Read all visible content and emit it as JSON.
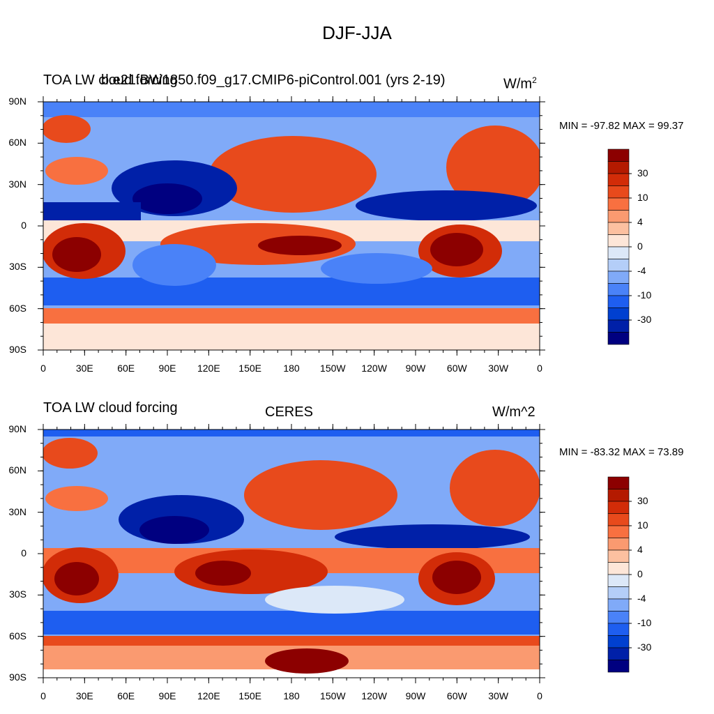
{
  "title": "DJF-JJA",
  "colors": {
    "levels": [
      "#000080",
      "#0020a8",
      "#0040d0",
      "#1e5ef0",
      "#4a82f8",
      "#80aaf8",
      "#b4cef8",
      "#dce8f8",
      "#fde6d8",
      "#fcc0a0",
      "#fa9a70",
      "#f87040",
      "#e84a1c",
      "#d22c08",
      "#b41a00",
      "#8c0000"
    ],
    "land": "#000000"
  },
  "panels": [
    {
      "left_title": "TOA LW cloud forcing",
      "center_title": "b.e21.BW1850.f09_g17.CMIP6-piControl.001 (yrs 2-19)",
      "units": "W/m",
      "units_sup": "2",
      "stats": "MIN = -97.82 MAX =  99.37"
    },
    {
      "left_title": "TOA LW cloud forcing",
      "center_title": "CERES",
      "units": "W/m^2",
      "units_sup": "",
      "stats": "MIN = -83.32 MAX =  73.89"
    }
  ],
  "lat_labels": [
    "90N",
    "60N",
    "30N",
    "0",
    "30S",
    "60S",
    "90S"
  ],
  "lon_labels": [
    "0",
    "30E",
    "60E",
    "90E",
    "120E",
    "150E",
    "180",
    "150W",
    "120W",
    "90W",
    "60W",
    "30W",
    "0"
  ],
  "colorbar_labels": [
    "30",
    "10",
    "4",
    "0",
    "-4",
    "-10",
    "-30"
  ],
  "chart_data": [
    {
      "type": "heatmap",
      "title": "TOA LW cloud forcing",
      "subtitle": "b.e21.BW1850.f09_g17.CMIP6-piControl.001 (yrs 2-19)",
      "units": "W/m^2",
      "contour_levels": [
        -50,
        -40,
        -30,
        -20,
        -10,
        -7,
        -4,
        -2,
        0,
        2,
        4,
        7,
        10,
        20,
        30,
        40,
        50
      ],
      "colorbar_tick_labels": [
        "30",
        "10",
        "4",
        "0",
        "-4",
        "-10",
        "-30"
      ],
      "min": -97.82,
      "max": 99.37,
      "xlim": [
        0,
        360
      ],
      "ylim": [
        -90,
        90
      ]
    },
    {
      "type": "heatmap",
      "title": "TOA LW cloud forcing",
      "subtitle": "CERES",
      "units": "W/m^2",
      "contour_levels": [
        -50,
        -40,
        -30,
        -20,
        -10,
        -7,
        -4,
        -2,
        0,
        2,
        4,
        7,
        10,
        20,
        30,
        40,
        50
      ],
      "colorbar_tick_labels": [
        "30",
        "10",
        "4",
        "0",
        "-4",
        "-10",
        "-30"
      ],
      "min": -83.32,
      "max": 73.89,
      "xlim": [
        0,
        360
      ],
      "ylim": [
        -90,
        90
      ]
    }
  ]
}
